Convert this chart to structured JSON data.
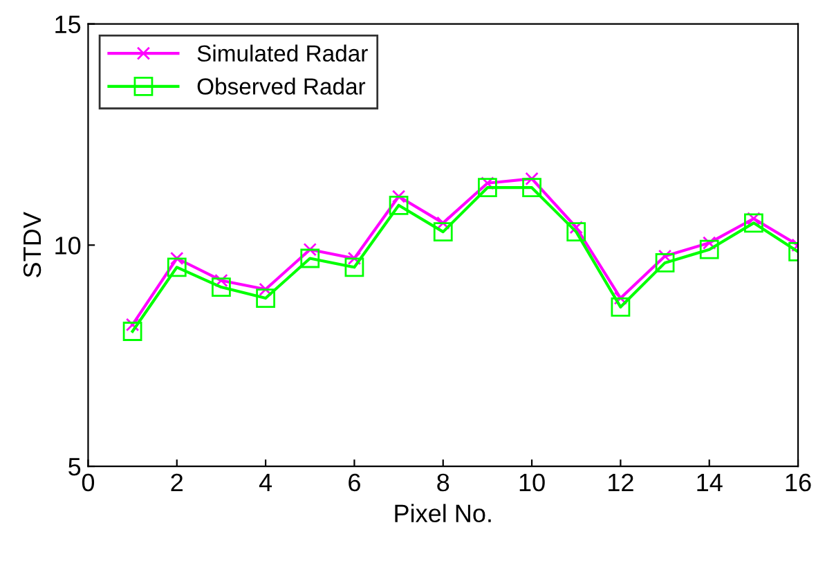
{
  "chart_data": {
    "type": "line",
    "xlabel": "Pixel No.",
    "ylabel": "STDV",
    "x": [
      1,
      2,
      3,
      4,
      5,
      6,
      7,
      8,
      9,
      10,
      11,
      12,
      13,
      14,
      15,
      16
    ],
    "series": [
      {
        "name": "Simulated Radar",
        "color": "#ff00ff",
        "marker": "cross",
        "values": [
          8.2,
          9.7,
          9.2,
          9.0,
          9.9,
          9.7,
          11.1,
          10.5,
          11.4,
          11.5,
          10.4,
          8.8,
          9.75,
          10.05,
          10.6,
          10.0
        ]
      },
      {
        "name": "Observed Radar",
        "color": "#00ff00",
        "marker": "square",
        "values": [
          8.05,
          9.5,
          9.05,
          8.8,
          9.7,
          9.5,
          10.9,
          10.3,
          11.3,
          11.3,
          10.3,
          8.6,
          9.6,
          9.9,
          10.5,
          9.85
        ]
      }
    ],
    "xlim": [
      0,
      16
    ],
    "xticks": [
      0,
      2,
      4,
      6,
      8,
      10,
      12,
      14,
      16
    ],
    "ylim": [
      5,
      15
    ],
    "yticks": [
      5,
      10,
      15
    ],
    "grid": false,
    "legend": "top left",
    "line_style": "solid"
  }
}
